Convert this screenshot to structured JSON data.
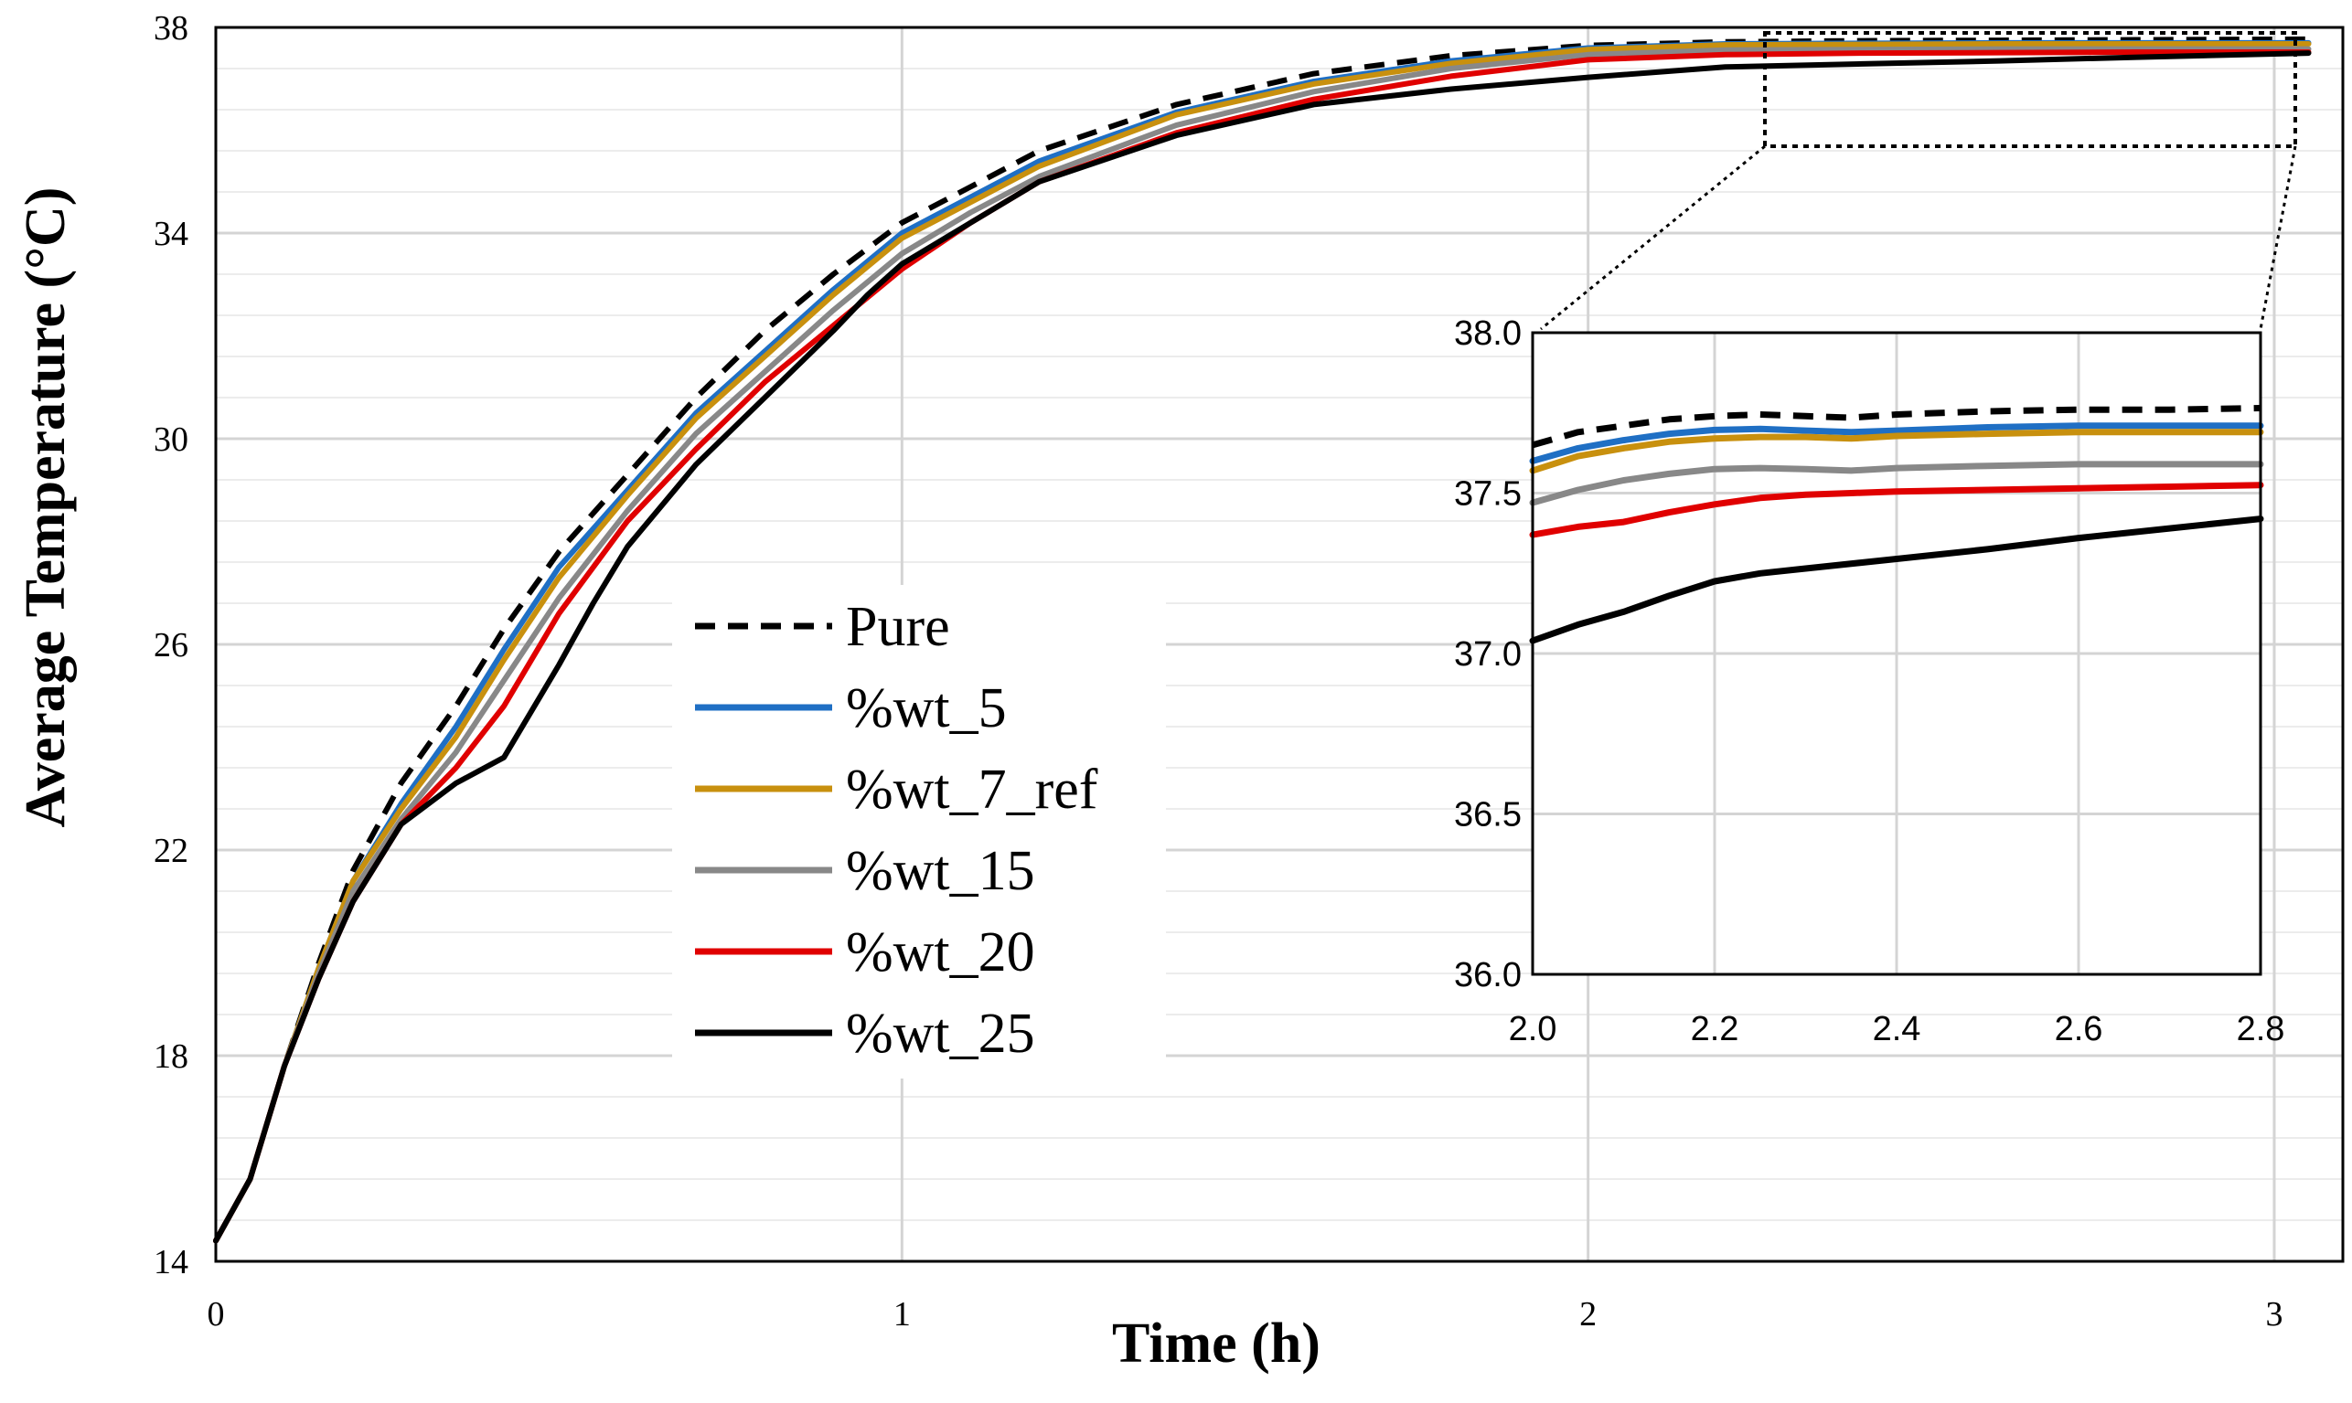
{
  "chart_data": [
    {
      "type": "line",
      "name": "main",
      "title": "",
      "xlabel": "Time (h)",
      "ylabel": "Average Temperature (°C)",
      "xlim": [
        0,
        3.1
      ],
      "ylim": [
        14,
        38
      ],
      "xticks": [
        0,
        1,
        2,
        3
      ],
      "yticks": [
        14,
        18,
        22,
        26,
        30,
        34,
        38
      ],
      "xtick_labels": [
        "0",
        "1",
        "2",
        "3"
      ],
      "ytick_labels": [
        "14",
        "18",
        "22",
        "26",
        "30",
        "34",
        "38"
      ],
      "grid": true,
      "legend_position": "center",
      "series": [
        {
          "name": "Pure",
          "color": "#000000",
          "dashed": true,
          "x": [
            0,
            0.05,
            0.1,
            0.15,
            0.2,
            0.27,
            0.35,
            0.42,
            0.5,
            0.6,
            0.7,
            0.8,
            0.9,
            1.0,
            1.1,
            1.2,
            1.4,
            1.6,
            1.8,
            2.0,
            2.2,
            2.4,
            2.6,
            2.8,
            3.05
          ],
          "y": [
            14.4,
            15.6,
            17.8,
            19.8,
            21.6,
            23.3,
            24.8,
            26.3,
            27.8,
            29.3,
            30.8,
            32.1,
            33.2,
            34.2,
            34.9,
            35.6,
            36.5,
            37.1,
            37.45,
            37.65,
            37.72,
            37.74,
            37.75,
            37.76,
            37.77
          ]
        },
        {
          "name": "%wt_5",
          "color": "#1f6fc4",
          "dashed": false,
          "x": [
            0,
            0.05,
            0.1,
            0.15,
            0.2,
            0.27,
            0.35,
            0.42,
            0.5,
            0.6,
            0.7,
            0.8,
            0.9,
            1.0,
            1.1,
            1.2,
            1.4,
            1.6,
            1.8,
            2.0,
            2.2,
            2.4,
            2.6,
            2.8,
            3.05
          ],
          "y": [
            14.4,
            15.6,
            17.8,
            19.7,
            21.4,
            22.9,
            24.4,
            25.9,
            27.5,
            29.0,
            30.5,
            31.7,
            32.9,
            34.0,
            34.7,
            35.4,
            36.35,
            36.95,
            37.35,
            37.6,
            37.68,
            37.69,
            37.7,
            37.7,
            37.7
          ]
        },
        {
          "name": "%wt_7_ref",
          "color": "#c8900e",
          "dashed": false,
          "x": [
            0,
            0.05,
            0.1,
            0.15,
            0.2,
            0.27,
            0.35,
            0.42,
            0.5,
            0.6,
            0.7,
            0.8,
            0.9,
            1.0,
            1.1,
            1.2,
            1.4,
            1.6,
            1.8,
            2.0,
            2.2,
            2.4,
            2.6,
            2.8,
            3.05
          ],
          "y": [
            14.4,
            15.6,
            17.8,
            19.7,
            21.4,
            22.8,
            24.2,
            25.7,
            27.3,
            28.9,
            30.4,
            31.6,
            32.8,
            33.9,
            34.6,
            35.3,
            36.3,
            36.9,
            37.3,
            37.57,
            37.66,
            37.67,
            37.68,
            37.68,
            37.68
          ]
        },
        {
          "name": "%wt_15",
          "color": "#888888",
          "dashed": false,
          "x": [
            0,
            0.05,
            0.1,
            0.15,
            0.2,
            0.27,
            0.35,
            0.42,
            0.5,
            0.6,
            0.7,
            0.8,
            0.9,
            1.0,
            1.1,
            1.2,
            1.4,
            1.6,
            1.8,
            2.0,
            2.2,
            2.4,
            2.6,
            2.8,
            3.05
          ],
          "y": [
            14.4,
            15.6,
            17.8,
            19.6,
            21.2,
            22.6,
            23.9,
            25.3,
            26.9,
            28.6,
            30.1,
            31.3,
            32.5,
            33.6,
            34.4,
            35.1,
            36.1,
            36.75,
            37.2,
            37.47,
            37.56,
            37.57,
            37.58,
            37.58,
            37.58
          ]
        },
        {
          "name": "%wt_20",
          "color": "#e00000",
          "dashed": false,
          "x": [
            0,
            0.05,
            0.1,
            0.15,
            0.2,
            0.27,
            0.35,
            0.42,
            0.5,
            0.6,
            0.7,
            0.8,
            0.9,
            1.0,
            1.1,
            1.2,
            1.4,
            1.6,
            1.8,
            2.0,
            2.2,
            2.4,
            2.6,
            2.8,
            3.05
          ],
          "y": [
            14.4,
            15.6,
            17.8,
            19.5,
            21.0,
            22.5,
            23.6,
            24.8,
            26.6,
            28.4,
            29.8,
            31.1,
            32.2,
            33.3,
            34.2,
            35.0,
            35.95,
            36.6,
            37.05,
            37.37,
            37.47,
            37.5,
            37.51,
            37.52,
            37.52
          ]
        },
        {
          "name": "%wt_25",
          "color": "#000000",
          "dashed": false,
          "x": [
            0,
            0.05,
            0.1,
            0.15,
            0.2,
            0.27,
            0.35,
            0.42,
            0.5,
            0.55,
            0.6,
            0.7,
            0.8,
            0.9,
            0.95,
            1.0,
            1.1,
            1.2,
            1.4,
            1.6,
            1.8,
            2.0,
            2.2,
            2.4,
            2.6,
            2.8,
            3.05
          ],
          "y": [
            14.4,
            15.6,
            17.8,
            19.5,
            21.0,
            22.5,
            23.3,
            23.8,
            25.6,
            26.8,
            27.9,
            29.5,
            30.8,
            32.1,
            32.8,
            33.4,
            34.2,
            35.0,
            35.9,
            36.5,
            36.8,
            37.03,
            37.23,
            37.29,
            37.35,
            37.42,
            37.5
          ]
        }
      ]
    },
    {
      "type": "line",
      "name": "inset",
      "title": "",
      "xlabel": "",
      "ylabel": "",
      "xlim": [
        2.0,
        2.8
      ],
      "ylim": [
        36.0,
        38.0
      ],
      "xticks": [
        2.0,
        2.2,
        2.4,
        2.6,
        2.8
      ],
      "yticks": [
        36.0,
        36.5,
        37.0,
        37.5,
        38.0
      ],
      "xtick_labels": [
        "2.0",
        "2.2",
        "2.4",
        "2.6",
        "2.8"
      ],
      "ytick_labels": [
        "36.0",
        "36.5",
        "37.0",
        "37.5",
        "38.0"
      ],
      "grid": true,
      "series": [
        {
          "name": "Pure",
          "color": "#000000",
          "dashed": true,
          "x": [
            2.0,
            2.05,
            2.1,
            2.15,
            2.2,
            2.25,
            2.3,
            2.35,
            2.4,
            2.5,
            2.6,
            2.7,
            2.8
          ],
          "y": [
            37.65,
            37.69,
            37.71,
            37.73,
            37.74,
            37.745,
            37.74,
            37.735,
            37.745,
            37.755,
            37.76,
            37.76,
            37.765
          ]
        },
        {
          "name": "%wt_5",
          "color": "#1f6fc4",
          "dashed": false,
          "x": [
            2.0,
            2.05,
            2.1,
            2.15,
            2.2,
            2.25,
            2.3,
            2.35,
            2.4,
            2.5,
            2.6,
            2.7,
            2.8
          ],
          "y": [
            37.6,
            37.64,
            37.665,
            37.685,
            37.697,
            37.7,
            37.695,
            37.69,
            37.695,
            37.705,
            37.71,
            37.71,
            37.71
          ]
        },
        {
          "name": "%wt_7_ref",
          "color": "#c8900e",
          "dashed": false,
          "x": [
            2.0,
            2.05,
            2.1,
            2.15,
            2.2,
            2.25,
            2.3,
            2.35,
            2.4,
            2.5,
            2.6,
            2.7,
            2.8
          ],
          "y": [
            37.57,
            37.615,
            37.64,
            37.66,
            37.67,
            37.675,
            37.675,
            37.67,
            37.678,
            37.685,
            37.69,
            37.69,
            37.69
          ]
        },
        {
          "name": "%wt_15",
          "color": "#888888",
          "dashed": false,
          "x": [
            2.0,
            2.05,
            2.1,
            2.15,
            2.2,
            2.25,
            2.3,
            2.35,
            2.4,
            2.5,
            2.6,
            2.7,
            2.8
          ],
          "y": [
            37.47,
            37.51,
            37.54,
            37.56,
            37.575,
            37.578,
            37.575,
            37.57,
            37.578,
            37.585,
            37.59,
            37.59,
            37.59
          ]
        },
        {
          "name": "%wt_20",
          "color": "#e00000",
          "dashed": false,
          "x": [
            2.0,
            2.05,
            2.1,
            2.15,
            2.2,
            2.25,
            2.3,
            2.35,
            2.4,
            2.5,
            2.6,
            2.7,
            2.8
          ],
          "y": [
            37.37,
            37.395,
            37.41,
            37.44,
            37.465,
            37.485,
            37.495,
            37.5,
            37.505,
            37.51,
            37.515,
            37.52,
            37.525
          ]
        },
        {
          "name": "%wt_25",
          "color": "#000000",
          "dashed": false,
          "x": [
            2.0,
            2.05,
            2.1,
            2.15,
            2.2,
            2.25,
            2.3,
            2.4,
            2.5,
            2.6,
            2.7,
            2.8
          ],
          "y": [
            37.04,
            37.09,
            37.13,
            37.18,
            37.225,
            37.25,
            37.265,
            37.295,
            37.325,
            37.36,
            37.39,
            37.42
          ]
        }
      ]
    }
  ]
}
